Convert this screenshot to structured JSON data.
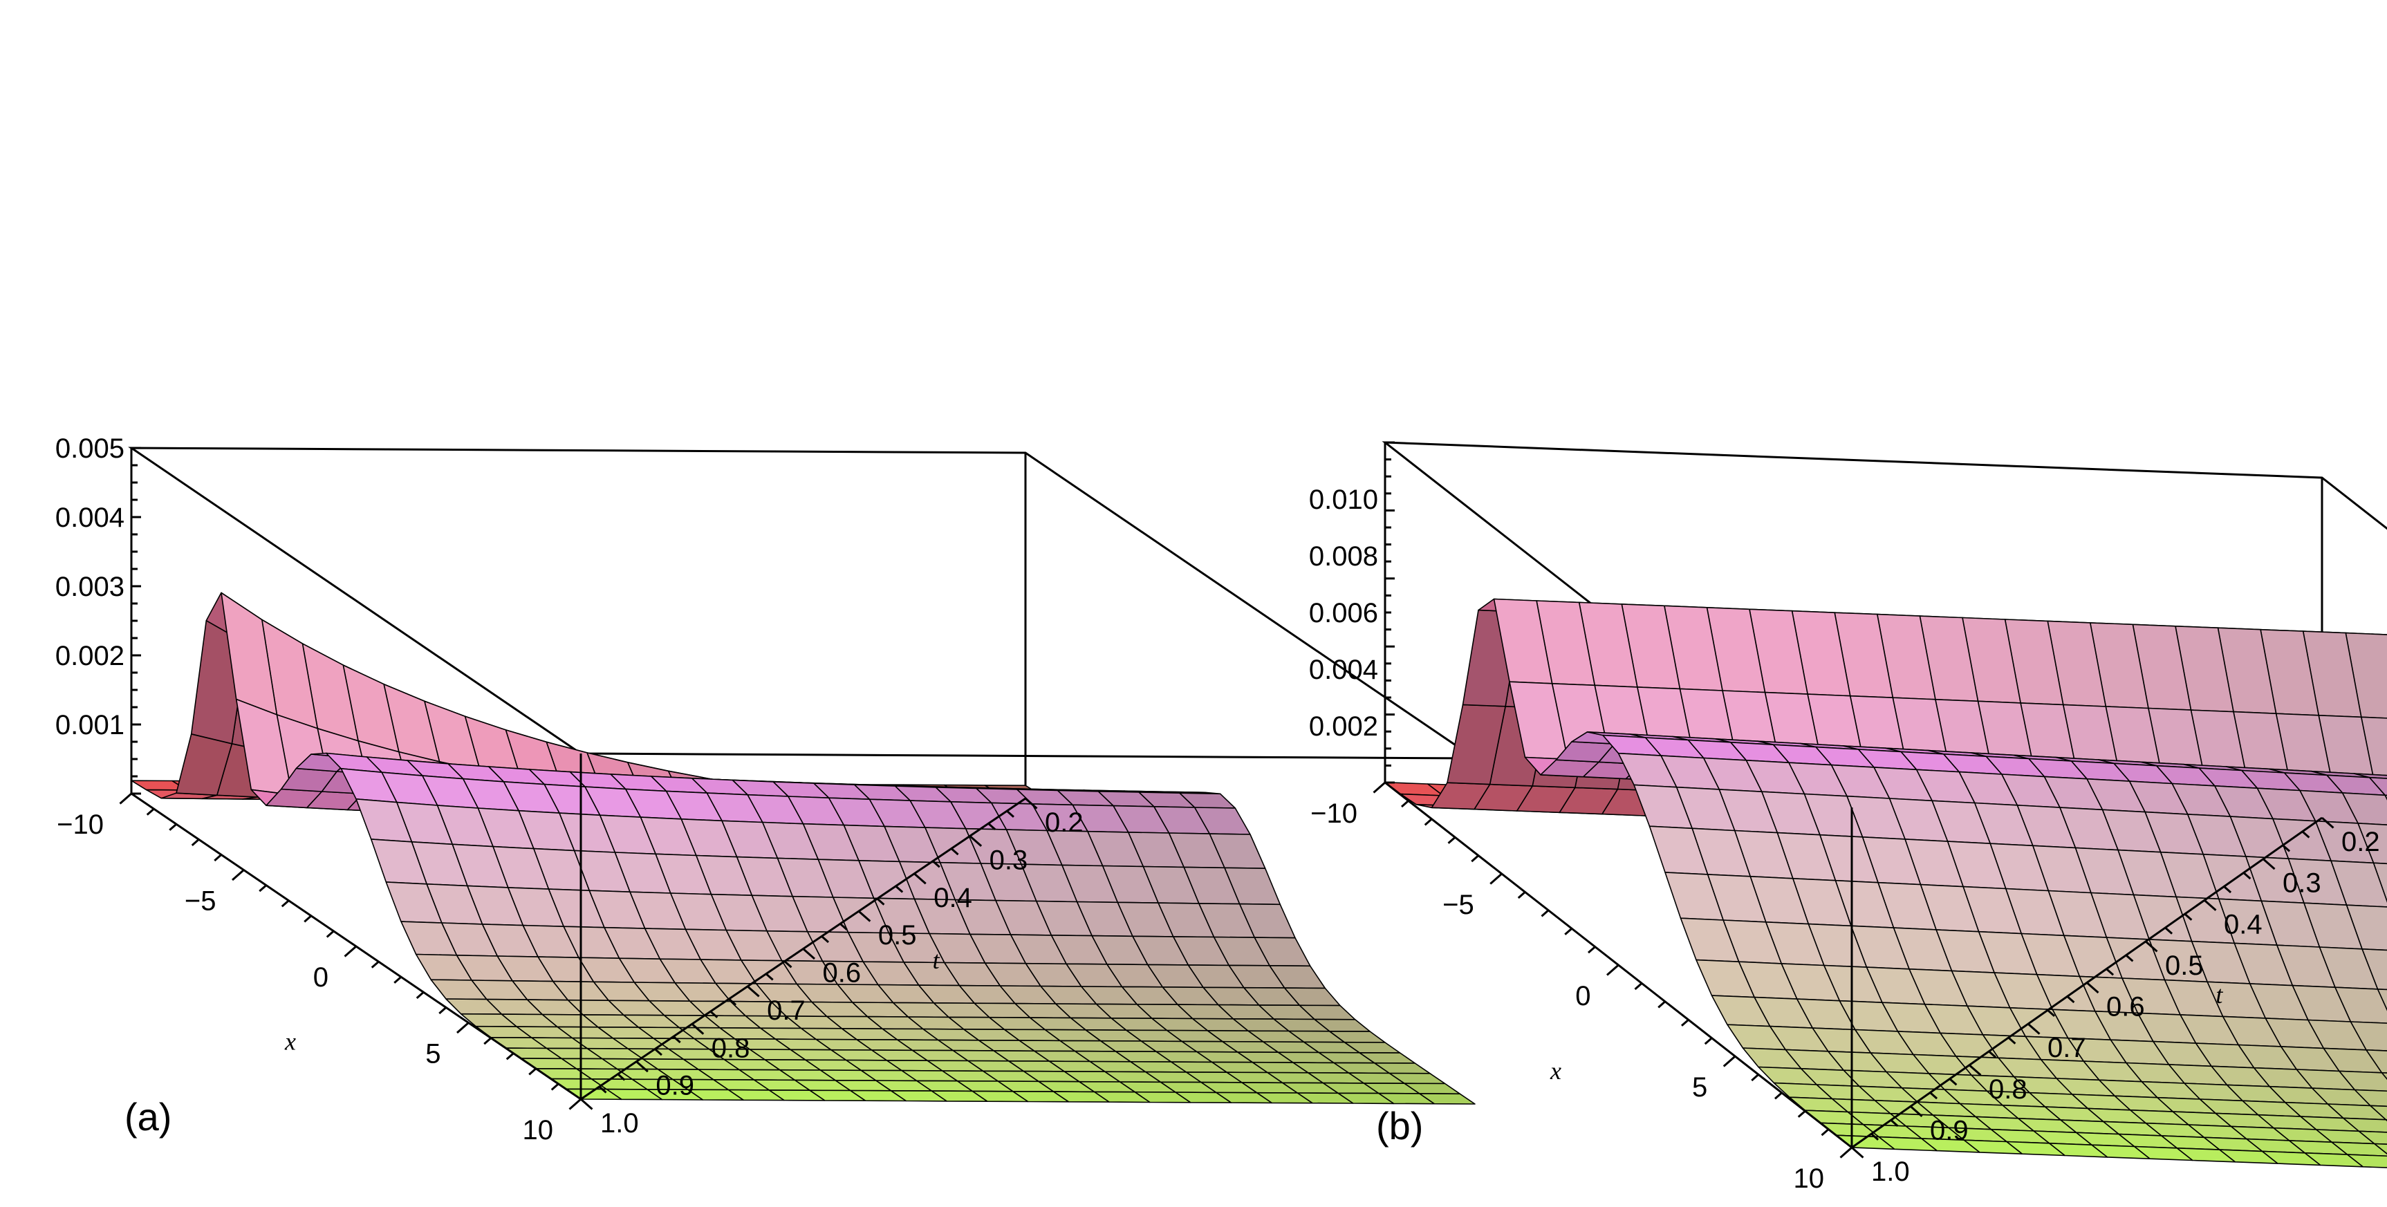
{
  "chart_data": [
    {
      "type": "surface3d",
      "panel_label": "(a)",
      "xlabel": "x",
      "tlabel": "t",
      "x_range": [
        -10,
        10
      ],
      "t_range": [
        0.2,
        1.0
      ],
      "z_range": [
        0,
        0.005
      ],
      "x_ticks": [
        "-10",
        "-5",
        "0",
        "5",
        "10"
      ],
      "t_ticks": [
        "0.2",
        "0.3",
        "0.4",
        "0.5",
        "0.6",
        "0.7",
        "0.8",
        "0.9",
        "1.0"
      ],
      "z_ticks": [
        "0.001",
        "0.002",
        "0.003",
        "0.004",
        "0.005"
      ],
      "peak_value": 0.0036,
      "grid": true
    },
    {
      "type": "surface3d",
      "panel_label": "(b)",
      "xlabel": "x",
      "tlabel": "t",
      "x_range": [
        -10,
        10
      ],
      "t_range": [
        0.2,
        1.0
      ],
      "z_range": [
        0,
        0.012
      ],
      "x_ticks": [
        "-10",
        "-5",
        "0",
        "5",
        "10"
      ],
      "t_ticks": [
        "0.2",
        "0.3",
        "0.4",
        "0.5",
        "0.6",
        "0.7",
        "0.8",
        "0.9",
        "1.0"
      ],
      "z_ticks": [
        "0.002",
        "0.004",
        "0.006",
        "0.008",
        "0.010"
      ],
      "peak_value": 0.0085,
      "grid": true
    }
  ],
  "colors": {
    "surface_left": "#e8504f",
    "surface_mid": "#e58be0",
    "surface_right": "#b8f25a",
    "surface_far": "#6e6a55"
  }
}
